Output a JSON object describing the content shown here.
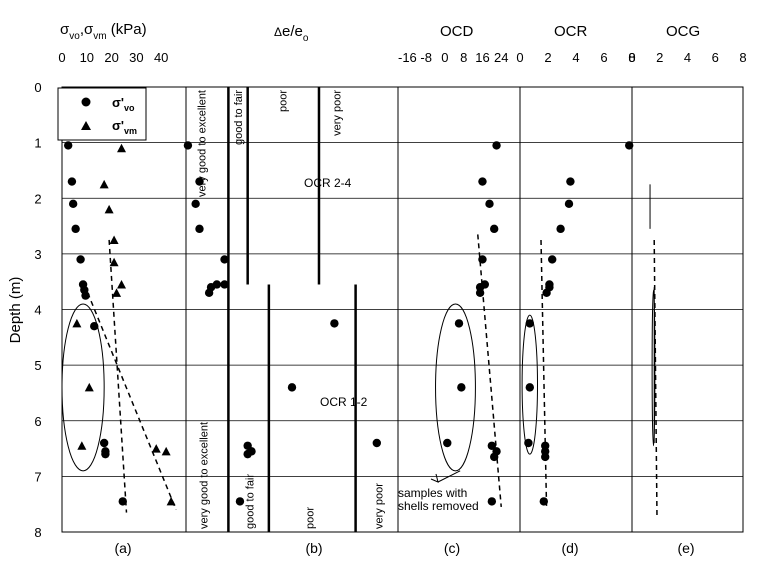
{
  "y_axis": {
    "label": "Depth (m)",
    "ticks": [
      "0",
      "1",
      "2",
      "3",
      "4",
      "5",
      "6",
      "7",
      "8"
    ],
    "range": [
      0,
      8
    ]
  },
  "chart_data": [
    {
      "id": "a",
      "type": "scatter",
      "panel_label": "(a)",
      "header": "σ'vo, σ'vm (kPa)",
      "header_parts": {
        "s1": "σ",
        "sub1": "vo",
        "comma": ",",
        "s2": "σ",
        "sub2": "vm",
        "unit": " (kPa)"
      },
      "xticks": [
        "0",
        "10",
        "20",
        "30",
        "40"
      ],
      "xlim": [
        0,
        50
      ],
      "legend": {
        "placement": "top-left",
        "entries": [
          {
            "glyph": "σ'",
            "sub": "vo"
          },
          {
            "glyph": "σ'",
            "sub": "vm"
          }
        ]
      },
      "series": [
        {
          "marker": "circle",
          "x": [
            2.5,
            4,
            4.5,
            5.5,
            7.5,
            8.5,
            9,
            9.5,
            13,
            17,
            17.5,
            17.5,
            24.5
          ],
          "y": [
            1.05,
            1.7,
            2.1,
            2.55,
            3.1,
            3.55,
            3.65,
            3.75,
            4.3,
            6.4,
            6.55,
            6.6,
            7.45
          ]
        },
        {
          "marker": "triangle",
          "x": [
            24,
            17,
            19,
            21,
            21,
            22,
            24,
            6,
            11,
            8,
            38,
            42,
            44
          ],
          "y": [
            1.1,
            1.75,
            2.2,
            2.75,
            3.15,
            3.7,
            3.55,
            4.25,
            5.4,
            6.45,
            6.5,
            6.55,
            7.45
          ]
        }
      ],
      "trend_lines": [
        {
          "x": [
            19,
            26
          ],
          "y": [
            2.75,
            7.65
          ]
        },
        {
          "x": [
            9,
            46
          ],
          "y": [
            3.55,
            7.6
          ]
        }
      ],
      "ellipses": [
        {
          "cx": 8.5,
          "cy": 5.4,
          "rx": 8.5,
          "ry": 1.5
        }
      ]
    },
    {
      "id": "b",
      "type": "scatter",
      "panel_label": "(b)",
      "header": "Δe/eo",
      "header_parts": {
        "delta": "Δ",
        "body": "e/e",
        "sub": "o"
      },
      "xlim": [
        0,
        0.55
      ],
      "points": {
        "x": [
          0.005,
          0.035,
          0.025,
          0.035,
          0.1,
          0.08,
          0.065,
          0.06,
          0.1,
          0.385,
          0.275,
          0.495,
          0.16,
          0.16,
          0.17,
          0.14
        ],
        "y": [
          1.05,
          1.7,
          2.1,
          2.55,
          3.1,
          3.55,
          3.6,
          3.7,
          3.55,
          4.25,
          5.4,
          6.4,
          6.45,
          6.6,
          6.55,
          7.45
        ]
      },
      "boundaries": [
        {
          "x": 0.11,
          "y": [
            0,
            3.55
          ]
        },
        {
          "x": 0.16,
          "y": [
            0,
            3.55
          ]
        },
        {
          "x": 0.345,
          "y": [
            0,
            3.55
          ]
        },
        {
          "x": 0.11,
          "y": [
            3.55,
            8
          ]
        },
        {
          "x": 0.215,
          "y": [
            3.55,
            8
          ]
        },
        {
          "x": 0.44,
          "y": [
            3.55,
            8
          ]
        }
      ],
      "quality_labels_upper": [
        {
          "text": "very good to excellent",
          "x": 0.04,
          "y": 0
        },
        {
          "text": "good to fair",
          "x": 0.135,
          "y": 0
        },
        {
          "text": "poor",
          "x": 0.25,
          "y": 0
        },
        {
          "text": "very poor",
          "x": 0.39,
          "y": 0
        }
      ],
      "quality_labels_lower": [
        {
          "text": "very good to excellent",
          "x": 0.045,
          "y": 8
        },
        {
          "text": "good to fair",
          "x": 0.165,
          "y": 8
        },
        {
          "text": "poor",
          "x": 0.32,
          "y": 8
        },
        {
          "text": "very poor",
          "x": 0.5,
          "y": 8
        }
      ],
      "annotations": [
        {
          "text": "OCR 2-4",
          "x": 0.43,
          "y": 1.75
        },
        {
          "text": "OCR 1-2",
          "x": 0.48,
          "y": 5.65
        }
      ]
    },
    {
      "id": "c",
      "type": "scatter",
      "panel_label": "(c)",
      "header": "OCD",
      "xticks": [
        "-16",
        "-8",
        "0",
        "8",
        "16",
        "24"
      ],
      "xtick_values": [
        -16,
        -8,
        0,
        8,
        16,
        24
      ],
      "xlim": [
        -20,
        32
      ],
      "points": {
        "x": [
          22,
          16,
          19,
          21,
          16,
          17,
          15,
          15,
          6,
          7,
          1,
          20,
          22,
          21,
          20
        ],
        "y": [
          1.05,
          1.7,
          2.1,
          2.55,
          3.1,
          3.55,
          3.6,
          3.7,
          4.25,
          5.4,
          6.4,
          6.45,
          6.55,
          6.65,
          7.45
        ]
      },
      "trend_line": {
        "x": [
          14,
          24
        ],
        "y": [
          2.65,
          7.55
        ]
      },
      "ellipse": {
        "cx": 4.5,
        "cy": 5.4,
        "rx": 8.5,
        "ry": 1.5
      },
      "annotation": {
        "lines": [
          "samples with",
          "shells removed"
        ]
      }
    },
    {
      "id": "d",
      "type": "scatter",
      "panel_label": "(d)",
      "header": "OCR",
      "xticks": [
        "0",
        "2",
        "4",
        "6",
        "8"
      ],
      "xlim": [
        0,
        8
      ],
      "points": {
        "x": [
          7.8,
          3.6,
          3.5,
          2.9,
          2.3,
          2.1,
          2.1,
          1.9,
          0.7,
          0.7,
          0.6,
          1.8,
          1.8,
          1.8,
          1.7
        ],
        "y": [
          1.05,
          1.7,
          2.1,
          2.55,
          3.1,
          3.55,
          3.6,
          3.7,
          4.25,
          5.4,
          6.4,
          6.45,
          6.55,
          6.65,
          7.45
        ]
      },
      "trend_line": {
        "x": [
          1.5,
          1.9
        ],
        "y": [
          2.75,
          7.6
        ]
      },
      "ellipse": {
        "cx": 0.7,
        "cy": 5.35,
        "rx": 0.55,
        "ry": 1.25
      }
    },
    {
      "id": "e",
      "type": "line",
      "panel_label": "(e)",
      "header": "OCG",
      "xticks": [
        "0",
        "2",
        "4",
        "6",
        "8"
      ],
      "xlim": [
        0,
        8
      ],
      "solid_segments": [
        {
          "x": [
            1.3,
            1.3
          ],
          "y": [
            1.75,
            2.55
          ]
        },
        {
          "x": [
            1.6,
            1.6
          ],
          "y": [
            3.6,
            6.4
          ]
        }
      ],
      "trend_line": {
        "x": [
          1.6,
          1.8
        ],
        "y": [
          2.75,
          7.7
        ]
      },
      "ellipse": {
        "cx": 1.55,
        "cy": 5.05,
        "rx": 0.1,
        "ry": 1.4
      }
    }
  ]
}
